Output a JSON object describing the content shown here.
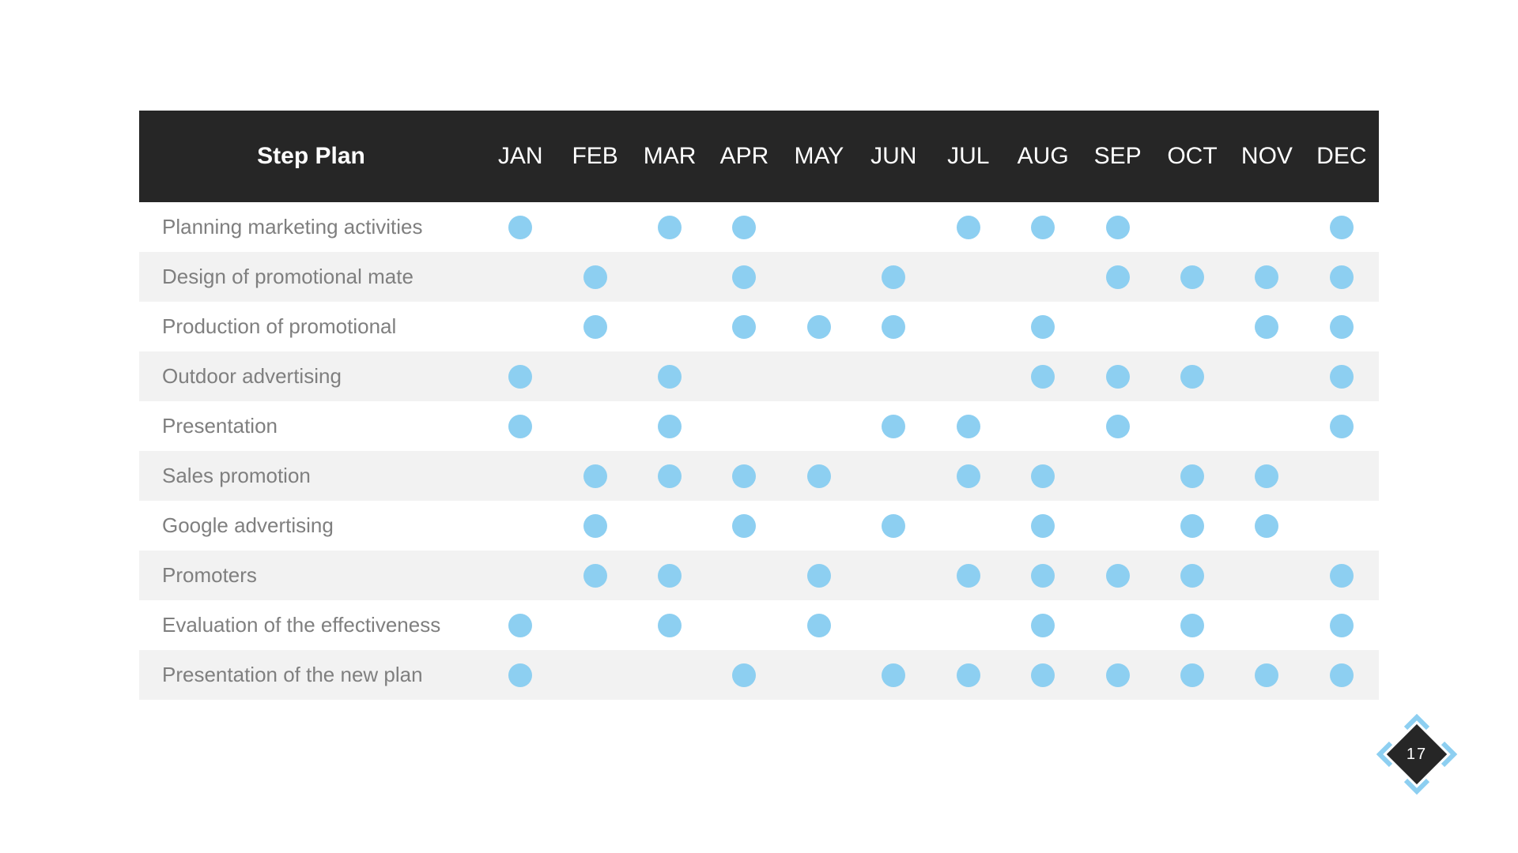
{
  "colors": {
    "header_bg": "#262626",
    "header_text": "#FFFFFF",
    "row_stripe": "#F2F2F2",
    "row_text": "#7F7F7F",
    "dot": "#8DCFF1",
    "chevron": "#8DCFF1",
    "diamond_bg": "#262626"
  },
  "page": {
    "number": "17"
  },
  "table": {
    "title": "Step Plan",
    "months": [
      "JAN",
      "FEB",
      "MAR",
      "APR",
      "MAY",
      "JUN",
      "JUL",
      "AUG",
      "SEP",
      "OCT",
      "NOV",
      "DEC"
    ],
    "rows": [
      {
        "label": "Planning marketing activities",
        "active": [
          1,
          0,
          1,
          1,
          0,
          0,
          1,
          1,
          1,
          0,
          0,
          1
        ]
      },
      {
        "label": "Design of promotional mate",
        "active": [
          0,
          1,
          0,
          1,
          0,
          1,
          0,
          0,
          1,
          1,
          1,
          1
        ]
      },
      {
        "label": "Production of promotional",
        "active": [
          0,
          1,
          0,
          1,
          1,
          1,
          0,
          1,
          0,
          0,
          1,
          1
        ]
      },
      {
        "label": "Outdoor advertising",
        "active": [
          1,
          0,
          1,
          0,
          0,
          0,
          0,
          1,
          1,
          1,
          0,
          1
        ]
      },
      {
        "label": "Presentation",
        "active": [
          1,
          0,
          1,
          0,
          0,
          1,
          1,
          0,
          1,
          0,
          0,
          1
        ]
      },
      {
        "label": "Sales promotion",
        "active": [
          0,
          1,
          1,
          1,
          1,
          0,
          1,
          1,
          0,
          1,
          1,
          0
        ]
      },
      {
        "label": "Google advertising",
        "active": [
          0,
          1,
          0,
          1,
          0,
          1,
          0,
          1,
          0,
          1,
          1,
          0
        ]
      },
      {
        "label": "Promoters",
        "active": [
          0,
          1,
          1,
          0,
          1,
          0,
          1,
          1,
          1,
          1,
          0,
          1
        ]
      },
      {
        "label": "Evaluation of the effectiveness",
        "active": [
          1,
          0,
          1,
          0,
          1,
          0,
          0,
          1,
          0,
          1,
          0,
          1
        ]
      },
      {
        "label": "Presentation of the new plan",
        "active": [
          1,
          0,
          0,
          1,
          0,
          1,
          1,
          1,
          1,
          1,
          1,
          1
        ]
      }
    ]
  },
  "chart_data": {
    "type": "table",
    "title": "Step Plan",
    "columns": [
      "JAN",
      "FEB",
      "MAR",
      "APR",
      "MAY",
      "JUN",
      "JUL",
      "AUG",
      "SEP",
      "OCT",
      "NOV",
      "DEC"
    ],
    "series": [
      {
        "name": "Planning marketing activities",
        "values": [
          1,
          0,
          1,
          1,
          0,
          0,
          1,
          1,
          1,
          0,
          0,
          1
        ]
      },
      {
        "name": "Design of promotional mate",
        "values": [
          0,
          1,
          0,
          1,
          0,
          1,
          0,
          0,
          1,
          1,
          1,
          1
        ]
      },
      {
        "name": "Production of promotional",
        "values": [
          0,
          1,
          0,
          1,
          1,
          1,
          0,
          1,
          0,
          0,
          1,
          1
        ]
      },
      {
        "name": "Outdoor advertising",
        "values": [
          1,
          0,
          1,
          0,
          0,
          0,
          0,
          1,
          1,
          1,
          0,
          1
        ]
      },
      {
        "name": "Presentation",
        "values": [
          1,
          0,
          1,
          0,
          0,
          1,
          1,
          0,
          1,
          0,
          0,
          1
        ]
      },
      {
        "name": "Sales promotion",
        "values": [
          0,
          1,
          1,
          1,
          1,
          0,
          1,
          1,
          0,
          1,
          1,
          0
        ]
      },
      {
        "name": "Google advertising",
        "values": [
          0,
          1,
          0,
          1,
          0,
          1,
          0,
          1,
          0,
          1,
          1,
          0
        ]
      },
      {
        "name": "Promoters",
        "values": [
          0,
          1,
          1,
          0,
          1,
          0,
          1,
          1,
          1,
          1,
          0,
          1
        ]
      },
      {
        "name": "Evaluation of the effectiveness",
        "values": [
          1,
          0,
          1,
          0,
          1,
          0,
          0,
          1,
          0,
          1,
          0,
          1
        ]
      },
      {
        "name": "Presentation of the new plan",
        "values": [
          1,
          0,
          0,
          1,
          0,
          1,
          1,
          1,
          1,
          1,
          1,
          1
        ]
      }
    ],
    "legend": "dot = activity scheduled in that month"
  }
}
